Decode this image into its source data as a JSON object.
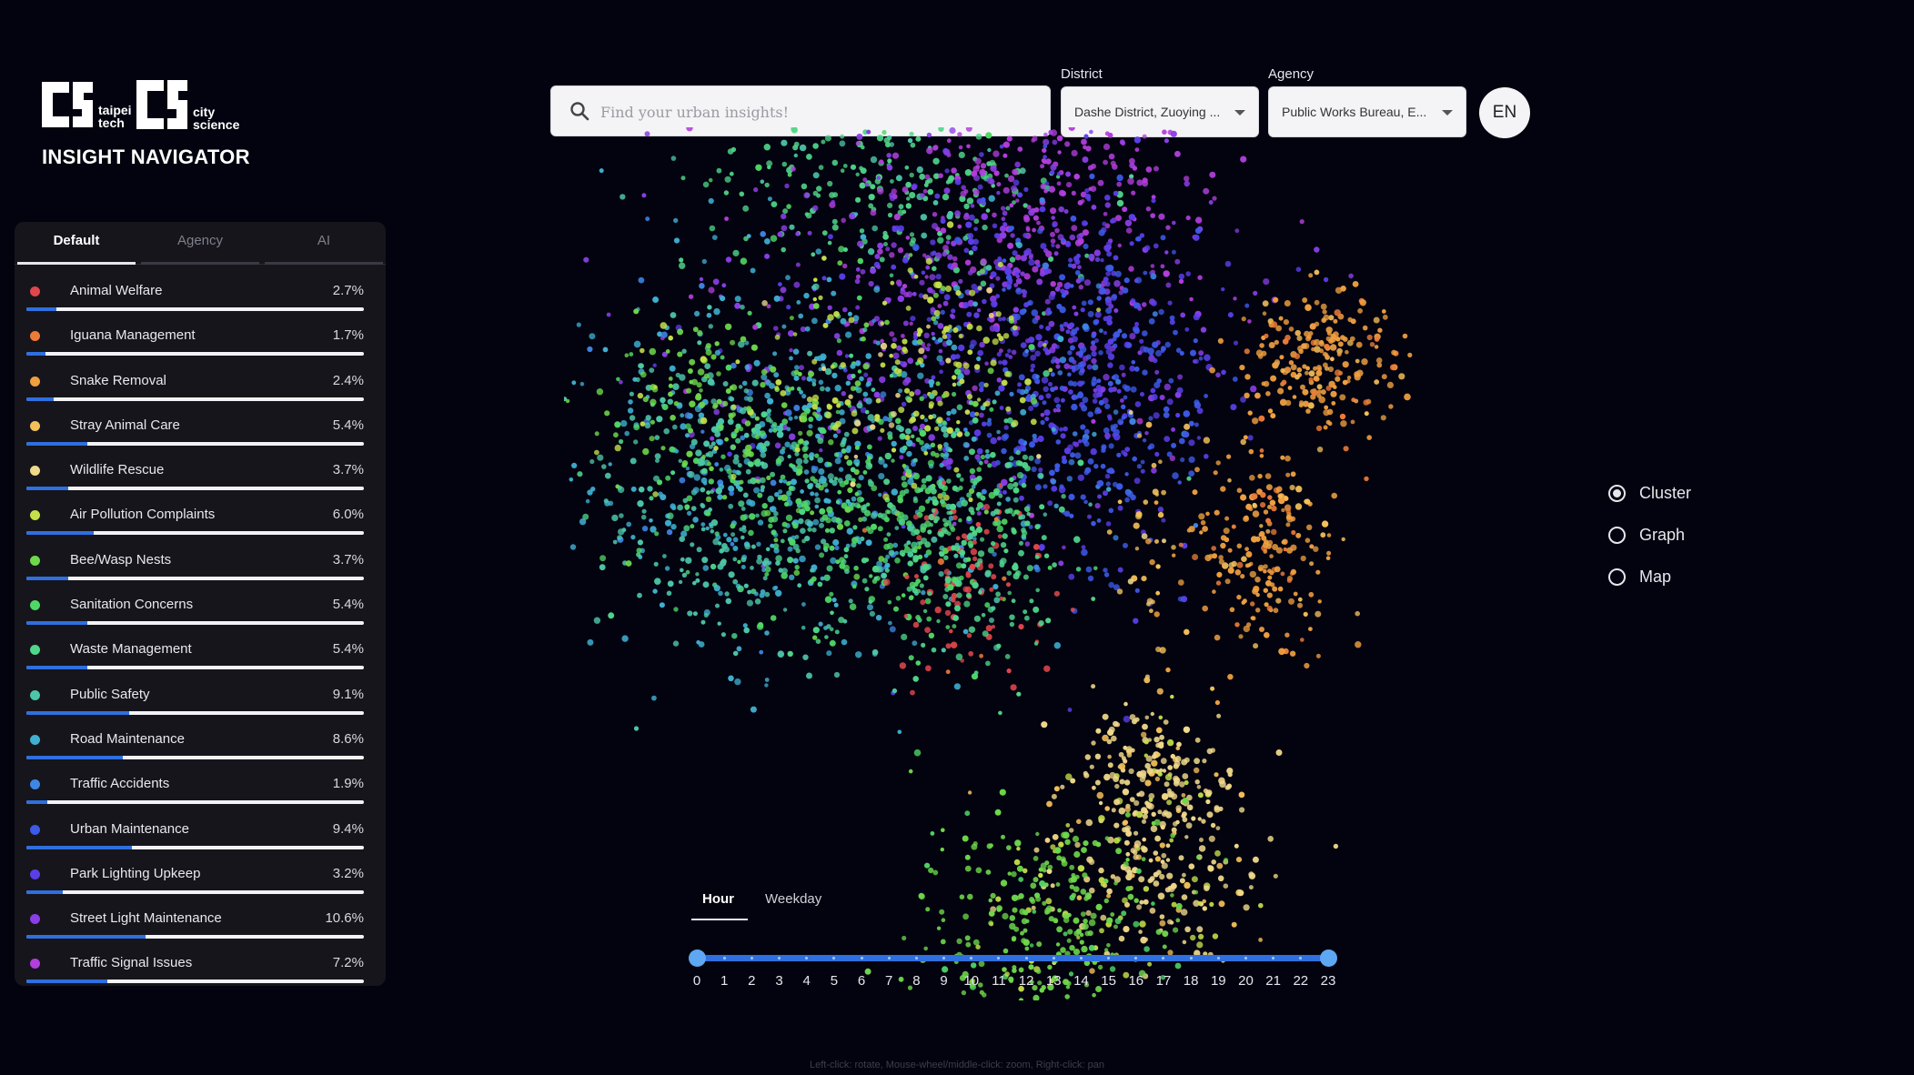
{
  "brand": {
    "logo_left_line1": "taipei",
    "logo_left_line2": "tech",
    "logo_right_line1": "city",
    "logo_right_line2": "science",
    "title": "INSIGHT NAVIGATOR"
  },
  "sidebar": {
    "tabs": [
      {
        "label": "Default",
        "active": true
      },
      {
        "label": "Agency",
        "active": false
      },
      {
        "label": "AI",
        "active": false
      }
    ],
    "categories": [
      {
        "label": "Animal Welfare",
        "pct": "2.7%",
        "value": 2.7,
        "color": "#e0474c"
      },
      {
        "label": "Iguana Management",
        "pct": "1.7%",
        "value": 1.7,
        "color": "#ec7b38"
      },
      {
        "label": "Snake Removal",
        "pct": "2.4%",
        "value": 2.4,
        "color": "#f0a040"
      },
      {
        "label": "Stray Animal Care",
        "pct": "5.4%",
        "value": 5.4,
        "color": "#f3c05a"
      },
      {
        "label": "Wildlife Rescue",
        "pct": "3.7%",
        "value": 3.7,
        "color": "#f0d98a"
      },
      {
        "label": "Air Pollution Complaints",
        "pct": "6.0%",
        "value": 6.0,
        "color": "#c6e04a"
      },
      {
        "label": "Bee/Wasp Nests",
        "pct": "3.7%",
        "value": 3.7,
        "color": "#6ed84a"
      },
      {
        "label": "Sanitation Concerns",
        "pct": "5.4%",
        "value": 5.4,
        "color": "#4fd866"
      },
      {
        "label": "Waste Management",
        "pct": "5.4%",
        "value": 5.4,
        "color": "#4fd68a"
      },
      {
        "label": "Public Safety",
        "pct": "9.1%",
        "value": 9.1,
        "color": "#4cc6a8"
      },
      {
        "label": "Road Maintenance",
        "pct": "8.6%",
        "value": 8.6,
        "color": "#3fb0d2"
      },
      {
        "label": "Traffic Accidents",
        "pct": "1.9%",
        "value": 1.9,
        "color": "#3e86e6"
      },
      {
        "label": "Urban Maintenance",
        "pct": "9.4%",
        "value": 9.4,
        "color": "#3d5ae8"
      },
      {
        "label": "Park Lighting Upkeep",
        "pct": "3.2%",
        "value": 3.2,
        "color": "#5a3ee8"
      },
      {
        "label": "Street Light Maintenance",
        "pct": "10.6%",
        "value": 10.6,
        "color": "#8a3ee6"
      },
      {
        "label": "Traffic Signal Issues",
        "pct": "7.2%",
        "value": 7.2,
        "color": "#b23edc"
      }
    ]
  },
  "search": {
    "placeholder": "Find your urban insights!",
    "icon": "search-icon"
  },
  "filters": {
    "district_label": "District",
    "district_value": "Dashe District, Zuoying ...",
    "agency_label": "Agency",
    "agency_value": "Public Works Bureau, E..."
  },
  "language_button": "EN",
  "views": [
    {
      "label": "Cluster",
      "selected": true
    },
    {
      "label": "Graph",
      "selected": false
    },
    {
      "label": "Map",
      "selected": false
    }
  ],
  "time": {
    "tabs": [
      {
        "label": "Hour",
        "active": true
      },
      {
        "label": "Weekday",
        "active": false
      }
    ],
    "range_start": 0,
    "range_end": 23,
    "ticks": [
      "0",
      "1",
      "2",
      "3",
      "4",
      "5",
      "6",
      "7",
      "8",
      "9",
      "10",
      "11",
      "12",
      "13",
      "14",
      "15",
      "16",
      "17",
      "18",
      "19",
      "20",
      "21",
      "22",
      "23"
    ]
  },
  "hint": "Left-click: rotate, Mouse-wheel/middle-click: zoom, Right-click: pan"
}
